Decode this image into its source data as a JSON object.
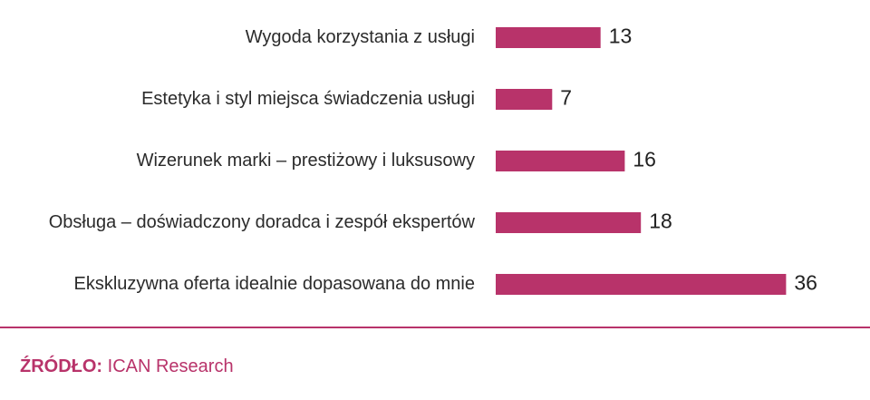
{
  "chart_data": {
    "type": "bar",
    "orientation": "horizontal",
    "categories": [
      "Wygoda korzystania z usługi",
      "Estetyka i styl miejsca świadczenia usługi",
      "Wizerunek marki – prestiżowy i luksusowy",
      "Obsługa – doświadczony doradca i zespół ekspertów",
      "Ekskluzywna oferta idealnie dopasowana do mnie"
    ],
    "values": [
      13,
      7,
      16,
      18,
      36
    ],
    "data_labels": [
      "13",
      "7",
      "16",
      "18",
      "36"
    ],
    "bar_color": "#b8336a",
    "grid": false,
    "legend": "none"
  },
  "source": {
    "label": "ŹRÓDŁO:",
    "text": " ICAN Research"
  },
  "colors": {
    "accent": "#b8336a",
    "text": "#2b2b2b"
  }
}
